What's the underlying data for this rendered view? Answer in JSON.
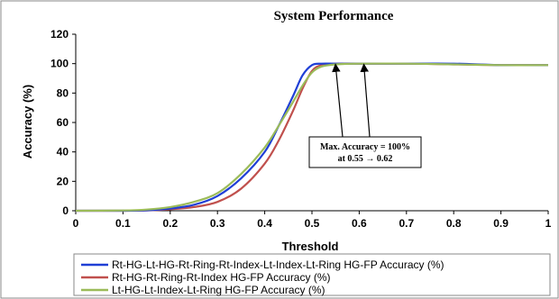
{
  "chart_data": {
    "type": "line",
    "title": "System Performance",
    "xlabel": "Threshold",
    "ylabel": "Accuracy (%)",
    "xlim": [
      0,
      1
    ],
    "ylim": [
      0,
      120
    ],
    "x_ticks": [
      "0",
      "0.1",
      "0.2",
      "0.3",
      "0.4",
      "0.5",
      "0.6",
      "0.7",
      "0.8",
      "0.9",
      "1"
    ],
    "y_ticks": [
      "0",
      "20",
      "40",
      "60",
      "80",
      "100",
      "120"
    ],
    "grid": false,
    "legend_position": "bottom",
    "series": [
      {
        "name": "Rt-HG-Lt-HG-Rt-Ring-Rt-Index-Lt-Index-Lt-Ring HG-FP Accuracy (%)",
        "color": "#1f3fd6",
        "x": [
          0,
          0.1,
          0.15,
          0.2,
          0.25,
          0.3,
          0.35,
          0.4,
          0.43,
          0.46,
          0.48,
          0.5,
          0.52,
          0.55,
          0.6,
          0.7,
          0.8,
          0.9,
          1.0
        ],
        "y": [
          0,
          0,
          0.3,
          1.5,
          4,
          10,
          22,
          40,
          58,
          78,
          92,
          99,
          100,
          100,
          100,
          100,
          100,
          99,
          99
        ]
      },
      {
        "name": "Rt-HG-Rt-Ring-Rt-Index HG-FP Accuracy (%)",
        "color": "#c0504d",
        "x": [
          0,
          0.1,
          0.15,
          0.2,
          0.25,
          0.3,
          0.35,
          0.4,
          0.43,
          0.46,
          0.48,
          0.5,
          0.52,
          0.55,
          0.6,
          0.7,
          0.8,
          0.9,
          1.0
        ],
        "y": [
          0,
          0,
          0.2,
          1,
          2.5,
          6,
          15,
          32,
          48,
          68,
          83,
          95,
          99,
          100,
          100,
          100,
          99.5,
          99,
          99
        ]
      },
      {
        "name": "Lt-HG-Lt-Index-Lt-Ring HG-FP Accuracy (%)",
        "color": "#9bbb59",
        "x": [
          0,
          0.1,
          0.15,
          0.2,
          0.25,
          0.3,
          0.35,
          0.4,
          0.43,
          0.46,
          0.48,
          0.5,
          0.52,
          0.55,
          0.6,
          0.7,
          0.8,
          0.9,
          1.0
        ],
        "y": [
          0,
          0.2,
          0.8,
          2.5,
          6,
          12,
          25,
          43,
          58,
          74,
          85,
          94,
          98,
          99.5,
          100,
          100,
          99.5,
          99,
          99
        ]
      }
    ],
    "annotation": {
      "line1": "Max. Accuracy = 100%",
      "line2": "at 0.55 → 0.62",
      "arrow_targets_x": [
        0.55,
        0.61
      ],
      "arrow_target_y": 100
    }
  }
}
